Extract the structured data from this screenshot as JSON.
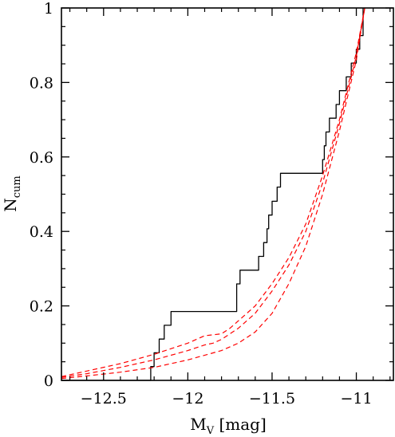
{
  "chart_data": {
    "type": "line",
    "title": "",
    "xlabel": {
      "main": "M",
      "sub": "V",
      "suffix": " [mag]"
    },
    "ylabel": {
      "main": "N",
      "sub": "cum"
    },
    "xlim": [
      -12.75,
      -10.78
    ],
    "ylim": [
      0,
      1
    ],
    "x_ticks": [
      -12.5,
      -12,
      -11.5,
      -11
    ],
    "x_tick_labels": [
      "−12.5",
      "−12",
      "−11.5",
      "−11"
    ],
    "y_ticks": [
      0,
      0.2,
      0.4,
      0.6,
      0.8,
      1
    ],
    "y_tick_labels": [
      "0",
      "0.2",
      "0.4",
      "0.6",
      "0.8",
      "1"
    ],
    "grid": false,
    "legend": "none",
    "series": [
      {
        "style": "step",
        "color": "#000000",
        "dash": "solid",
        "x": [
          -12.22,
          -12.2,
          -12.17,
          -12.14,
          -12.1,
          -11.71,
          -11.69,
          -11.58,
          -11.55,
          -11.53,
          -11.52,
          -11.5,
          -11.47,
          -11.45,
          -11.41,
          -11.2,
          -11.19,
          -11.18,
          -11.16,
          -11.12,
          -11.1,
          -11.06,
          -11.03,
          -11.0,
          -10.98,
          -10.96
        ],
        "y": [
          0.037,
          0.074,
          0.111,
          0.148,
          0.185,
          0.259,
          0.296,
          0.333,
          0.37,
          0.407,
          0.444,
          0.481,
          0.519,
          0.556,
          0.556,
          0.593,
          0.63,
          0.667,
          0.704,
          0.741,
          0.778,
          0.815,
          0.852,
          0.889,
          0.926,
          0.963
        ]
      },
      {
        "style": "line",
        "color": "#ff0000",
        "dash": "dashed",
        "x": [
          -12.75,
          -12.6,
          -12.4,
          -12.2,
          -12.0,
          -11.9,
          -11.8,
          -11.75,
          -11.7,
          -11.6,
          -11.5,
          -11.4,
          -11.3,
          -11.2,
          -11.1,
          -11.0,
          -10.95
        ],
        "y": [
          0.01,
          0.025,
          0.045,
          0.07,
          0.1,
          0.12,
          0.125,
          0.14,
          0.16,
          0.2,
          0.26,
          0.33,
          0.42,
          0.55,
          0.7,
          0.88,
          1.0
        ]
      },
      {
        "style": "line",
        "color": "#ff0000",
        "dash": "dashed",
        "x": [
          -12.75,
          -12.6,
          -12.4,
          -12.2,
          -12.0,
          -11.9,
          -11.85,
          -11.8,
          -11.7,
          -11.6,
          -11.5,
          -11.4,
          -11.3,
          -11.2,
          -11.1,
          -11.0,
          -10.95
        ],
        "y": [
          0.008,
          0.018,
          0.035,
          0.055,
          0.08,
          0.095,
          0.1,
          0.11,
          0.14,
          0.18,
          0.24,
          0.31,
          0.4,
          0.53,
          0.69,
          0.87,
          1.0
        ]
      },
      {
        "style": "line",
        "color": "#ff0000",
        "dash": "dashed",
        "x": [
          -12.75,
          -12.6,
          -12.4,
          -12.2,
          -12.0,
          -11.8,
          -11.7,
          -11.6,
          -11.5,
          -11.4,
          -11.3,
          -11.2,
          -11.1,
          -11.0,
          -10.95
        ],
        "y": [
          0.005,
          0.012,
          0.022,
          0.035,
          0.055,
          0.08,
          0.1,
          0.13,
          0.18,
          0.26,
          0.36,
          0.5,
          0.67,
          0.86,
          1.0
        ]
      }
    ]
  }
}
